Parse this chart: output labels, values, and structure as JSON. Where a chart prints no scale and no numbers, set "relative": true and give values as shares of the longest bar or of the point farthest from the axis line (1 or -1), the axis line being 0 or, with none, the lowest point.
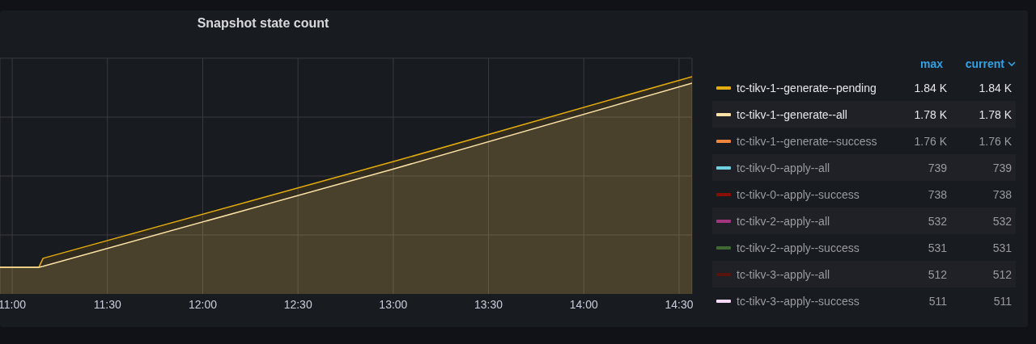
{
  "chart_data": {
    "type": "area",
    "title": "Snapshot state count",
    "relative": true,
    "x": [
      10.936,
      11.14,
      11.162,
      13.005,
      14.568
    ],
    "xlim": [
      10.936,
      14.568
    ],
    "xticks": [
      {
        "value": 11,
        "label": "11:00"
      },
      {
        "value": 11.5,
        "label": "11:30"
      },
      {
        "value": 12,
        "label": "12:00"
      },
      {
        "value": 12.5,
        "label": "12:30"
      },
      {
        "value": 13,
        "label": "13:00"
      },
      {
        "value": 13.5,
        "label": "13:30"
      },
      {
        "value": 14,
        "label": "14:00"
      },
      {
        "value": 14.5,
        "label": "14:30"
      }
    ],
    "grid": true,
    "legend": "right",
    "series": [
      {
        "name": "tc-tikv-1--generate--pending",
        "color": "#e5ac0e",
        "values": [
          0.123,
          0.123,
          0.164,
          0.61,
          1
        ]
      },
      {
        "name": "tc-tikv-1--generate--all",
        "color": "#fce2a6",
        "values": [
          0.123,
          0.123,
          0.127,
          0.576,
          0.97
        ]
      },
      {
        "name": "tc-tikv-1--generate--success",
        "color": "#ef843c",
        "values": [
          null,
          null,
          null,
          null,
          null
        ]
      },
      {
        "name": "tc-tikv-0--apply--all",
        "color": "#6ed0e0",
        "values": [
          null,
          null,
          null,
          null,
          null
        ]
      },
      {
        "name": "tc-tikv-0--apply--success",
        "color": "#890f02",
        "values": [
          null,
          null,
          null,
          null,
          null
        ]
      },
      {
        "name": "tc-tikv-2--apply--all",
        "color": "#a3357f",
        "values": [
          null,
          null,
          null,
          null,
          null
        ]
      },
      {
        "name": "tc-tikv-2--apply--success",
        "color": "#3f6833",
        "values": [
          null,
          null,
          null,
          null,
          null
        ]
      },
      {
        "name": "tc-tikv-3--apply--all",
        "color": "#58140c",
        "values": [
          null,
          null,
          null,
          null,
          null
        ]
      },
      {
        "name": "tc-tikv-3--apply--success",
        "color": "#f9d9f9",
        "values": [
          null,
          null,
          null,
          null,
          null
        ]
      }
    ],
    "annotations": [
      "max",
      "current",
      "1.84 K",
      "1.84 K",
      "1.78 K",
      "1.78 K",
      "1.76 K",
      "1.76 K",
      "739",
      "739",
      "738",
      "738",
      "532",
      "532",
      "531",
      "531",
      "512",
      "512",
      "511",
      "511"
    ]
  }
}
